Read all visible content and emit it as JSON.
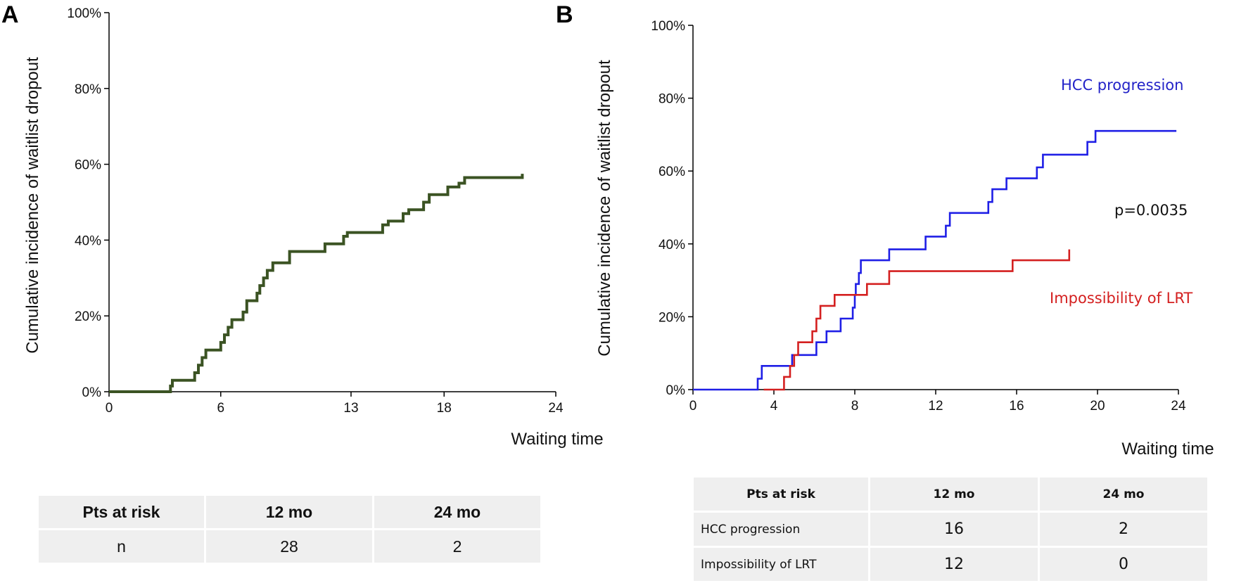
{
  "chart_data": [
    {
      "panel_label": "A",
      "type": "line",
      "ylabel": "Cumulative incidence of waitlist dropout",
      "xlabel": "Waiting time",
      "xlim": [
        0,
        24
      ],
      "ylim": [
        0,
        100
      ],
      "x_ticks": [
        "0",
        "6",
        "13",
        "18",
        "24"
      ],
      "y_ticks": [
        "0%",
        "20%",
        "40%",
        "60%",
        "80%",
        "100%"
      ],
      "grid": false,
      "series": [
        {
          "color": "#3b5323",
          "step": true,
          "points": [
            [
              0,
              0
            ],
            [
              3.1,
              0
            ],
            [
              3.3,
              1.5
            ],
            [
              3.4,
              3
            ],
            [
              4.4,
              3
            ],
            [
              4.6,
              5
            ],
            [
              4.8,
              7
            ],
            [
              5.0,
              9
            ],
            [
              5.2,
              11
            ],
            [
              5.9,
              11
            ],
            [
              6.0,
              13
            ],
            [
              6.2,
              15
            ],
            [
              6.4,
              17
            ],
            [
              6.6,
              19
            ],
            [
              7.0,
              19
            ],
            [
              7.2,
              21
            ],
            [
              7.4,
              24
            ],
            [
              7.8,
              24
            ],
            [
              7.95,
              26
            ],
            [
              8.1,
              28
            ],
            [
              8.3,
              30
            ],
            [
              8.5,
              32
            ],
            [
              8.8,
              34
            ],
            [
              9.4,
              34
            ],
            [
              9.7,
              37
            ],
            [
              11.4,
              37
            ],
            [
              11.6,
              39
            ],
            [
              12.4,
              39
            ],
            [
              12.6,
              41
            ],
            [
              12.8,
              42
            ],
            [
              13.2,
              42
            ],
            [
              13.4,
              42
            ],
            [
              14.5,
              42
            ],
            [
              14.7,
              44
            ],
            [
              15.0,
              45
            ],
            [
              15.6,
              45
            ],
            [
              15.8,
              47
            ],
            [
              16.1,
              48
            ],
            [
              16.7,
              48
            ],
            [
              16.9,
              50
            ],
            [
              17.2,
              52
            ],
            [
              18.0,
              52
            ],
            [
              18.2,
              54
            ],
            [
              18.6,
              54
            ],
            [
              18.8,
              55
            ],
            [
              19.1,
              56.5
            ],
            [
              22.2,
              56.5
            ],
            [
              22.2,
              57.5
            ]
          ]
        }
      ]
    },
    {
      "panel_label": "B",
      "type": "line",
      "ylabel": "Cumulative incidence of waitlist dropout",
      "xlabel": "Waiting time",
      "xlim": [
        0,
        24
      ],
      "ylim": [
        0,
        100
      ],
      "x_ticks": [
        "0",
        "4",
        "8",
        "12",
        "16",
        "20",
        "24"
      ],
      "y_ticks": [
        "0%",
        "20%",
        "40%",
        "60%",
        "80%",
        "100%"
      ],
      "grid": false,
      "annotations": [
        {
          "text": "HCC progression",
          "color": "#2323c8"
        },
        {
          "text": "p=0.0035",
          "color": "#111111"
        },
        {
          "text": "Impossibility of LRT",
          "color": "#d42020"
        }
      ],
      "series": [
        {
          "name": "HCC progression",
          "color": "#1f1fe6",
          "step": true,
          "points": [
            [
              0,
              0
            ],
            [
              3.2,
              0
            ],
            [
              3.2,
              3
            ],
            [
              3.4,
              6.5
            ],
            [
              4.9,
              6.5
            ],
            [
              4.9,
              9.5
            ],
            [
              6.1,
              9.5
            ],
            [
              6.1,
              13
            ],
            [
              6.6,
              13
            ],
            [
              6.6,
              16
            ],
            [
              7.3,
              16
            ],
            [
              7.3,
              19.5
            ],
            [
              7.9,
              19.5
            ],
            [
              7.9,
              22.5
            ],
            [
              8.0,
              26
            ],
            [
              8.05,
              29
            ],
            [
              8.2,
              32
            ],
            [
              8.3,
              35.5
            ],
            [
              9.7,
              35.5
            ],
            [
              9.7,
              38.5
            ],
            [
              11.5,
              38.5
            ],
            [
              11.5,
              42
            ],
            [
              12.5,
              42
            ],
            [
              12.5,
              45
            ],
            [
              12.7,
              48.5
            ],
            [
              14.6,
              48.5
            ],
            [
              14.6,
              51.5
            ],
            [
              14.8,
              55
            ],
            [
              15.5,
              55
            ],
            [
              15.5,
              58
            ],
            [
              17.0,
              58
            ],
            [
              17.0,
              61
            ],
            [
              17.3,
              64.5
            ],
            [
              19.5,
              64.5
            ],
            [
              19.5,
              68
            ],
            [
              19.9,
              71
            ],
            [
              23.9,
              71
            ]
          ]
        },
        {
          "name": "Impossibility of LRT",
          "color": "#d42020",
          "step": true,
          "points": [
            [
              3.5,
              0
            ],
            [
              4.5,
              0
            ],
            [
              4.5,
              3.5
            ],
            [
              4.8,
              6.5
            ],
            [
              5.0,
              9.5
            ],
            [
              5.2,
              13
            ],
            [
              5.8,
              13
            ],
            [
              5.9,
              16
            ],
            [
              6.1,
              19.5
            ],
            [
              6.3,
              23
            ],
            [
              7.0,
              23
            ],
            [
              7.0,
              26
            ],
            [
              8.6,
              26
            ],
            [
              8.6,
              29
            ],
            [
              9.7,
              29
            ],
            [
              9.7,
              32.5
            ],
            [
              15.8,
              32.5
            ],
            [
              15.8,
              35.5
            ],
            [
              18.6,
              35.5
            ],
            [
              18.6,
              38.5
            ]
          ]
        }
      ]
    }
  ],
  "risk_table_a": {
    "header": [
      "Pts at risk",
      "12 mo",
      "24 mo"
    ],
    "rows": [
      [
        "n",
        "28",
        "2"
      ]
    ]
  },
  "risk_table_b": {
    "header": [
      "Pts at risk",
      "12 mo",
      "24 mo"
    ],
    "rows": [
      [
        "HCC progression",
        "16",
        "2"
      ],
      [
        "Impossibility of LRT",
        "12",
        "0"
      ]
    ]
  }
}
